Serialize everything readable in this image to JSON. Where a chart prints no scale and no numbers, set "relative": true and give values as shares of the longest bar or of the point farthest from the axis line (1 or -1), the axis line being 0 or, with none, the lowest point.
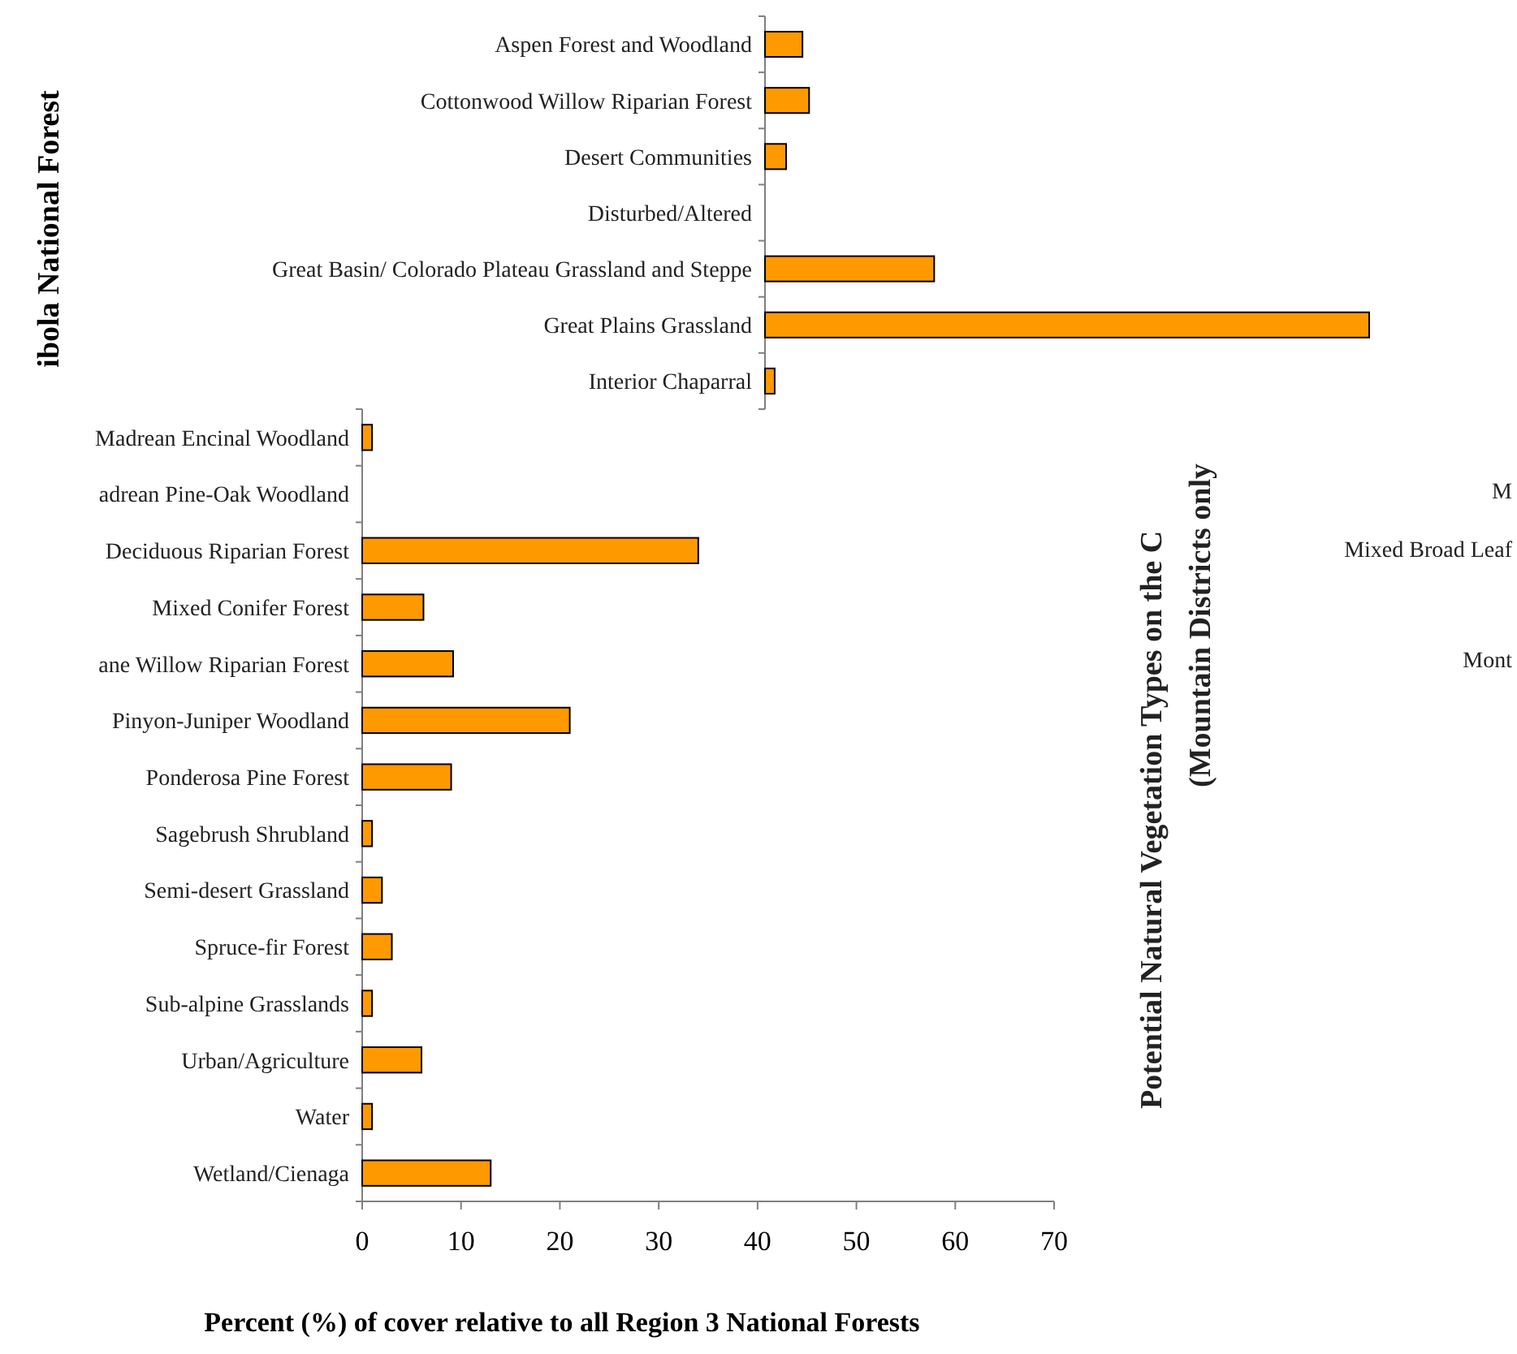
{
  "chart_data": [
    {
      "type": "bar",
      "orientation": "horizontal",
      "relative": true,
      "ylabel": "ibola National Forest",
      "categories": [
        "Aspen Forest and Woodland",
        "Cottonwood Willow Riparian Forest",
        "Desert Communities",
        "Disturbed/Altered",
        "Great Basin/ Colorado Plateau Grassland and Steppe",
        "Great Plains Grassland",
        "Interior Chaparral"
      ],
      "values": [
        0.062,
        0.073,
        0.035,
        0,
        0.28,
        1,
        0.016
      ],
      "color": "#ff9900"
    },
    {
      "type": "bar",
      "orientation": "horizontal",
      "xlabel": "Percent (%) of cover relative to all Region 3 National Forests",
      "categories": [
        "Madrean Encinal Woodland",
        "adrean Pine-Oak Woodland",
        "Deciduous Riparian Forest",
        "Mixed Conifer Forest",
        "ane Willow Riparian Forest",
        "Pinyon-Juniper Woodland",
        "Ponderosa Pine Forest",
        "Sagebrush Shrubland",
        "Semi-desert Grassland",
        "Spruce-fir Forest",
        "Sub-alpine Grasslands",
        "Urban/Agriculture",
        "Water",
        "Wetland/Cienaga"
      ],
      "values": [
        1,
        0,
        34,
        6.2,
        9.2,
        21,
        9,
        1,
        2,
        3,
        1,
        6,
        1,
        13
      ],
      "color": "#ff9900",
      "xlim": [
        0,
        70
      ],
      "xticks": [
        0,
        10,
        20,
        30,
        40,
        50,
        60,
        70
      ],
      "annotations": [
        "Potential Natural Vegetation Types on the C",
        "(Mountain Districts only",
        "M",
        "Mixed Broad Leaf",
        "Mont"
      ]
    }
  ]
}
